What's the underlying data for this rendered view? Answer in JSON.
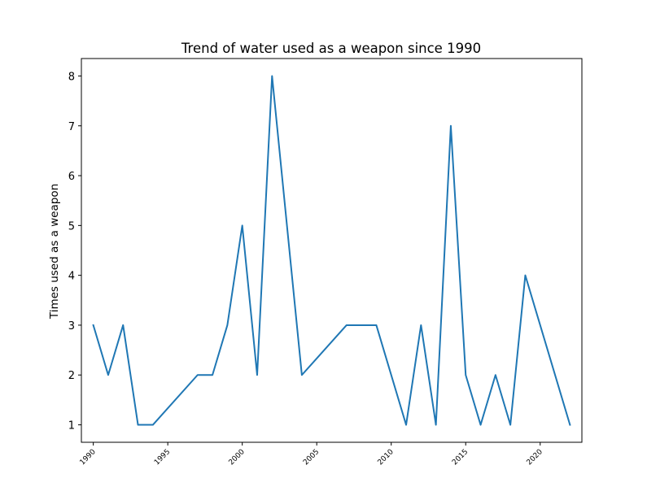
{
  "chart_data": {
    "type": "line",
    "title": "Trend of water used as a weapon since 1990",
    "xlabel": "",
    "ylabel": "Times used as a weapon",
    "xlim": [
      1989.2,
      2022.8
    ],
    "ylim": [
      0.65,
      8.35
    ],
    "x_ticks": [
      1990,
      1995,
      2000,
      2005,
      2010,
      2015,
      2020
    ],
    "y_ticks": [
      1,
      2,
      3,
      4,
      5,
      6,
      7,
      8
    ],
    "grid": false,
    "series": [
      {
        "color": "#1f77b4",
        "x": [
          1990,
          1991,
          1992,
          1993,
          1994,
          1997,
          1998,
          1999,
          2000,
          2001,
          2002,
          2004,
          2007,
          2008,
          2009,
          2011,
          2012,
          2013,
          2014,
          2015,
          2016,
          2017,
          2018,
          2019,
          2022
        ],
        "y": [
          3,
          2,
          3,
          1,
          1,
          2,
          2,
          3,
          5,
          2,
          8,
          2,
          3,
          3,
          3,
          1,
          3,
          1,
          7,
          2,
          1,
          2,
          1,
          4,
          1
        ]
      }
    ]
  }
}
